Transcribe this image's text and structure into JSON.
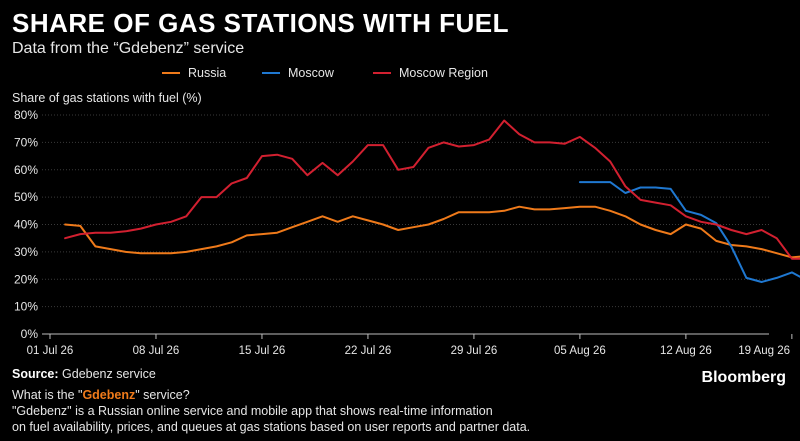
{
  "header": {
    "title": "SHARE OF GAS STATIONS WITH FUEL",
    "subtitle": "Data from the “Gdebenz” service"
  },
  "legend": [
    {
      "label": "Russia",
      "color": "#ef7a1a"
    },
    {
      "label": "Moscow",
      "color": "#1f78d1"
    },
    {
      "label": "Moscow Region",
      "color": "#d22030"
    }
  ],
  "chart_data": {
    "type": "line",
    "title": "SHARE OF GAS STATIONS WITH FUEL",
    "ylabel": "Share of gas stations with fuel (%)",
    "ylim": [
      0,
      80
    ],
    "y_ticks": [
      "0%",
      "10%",
      "20%",
      "30%",
      "40%",
      "50%",
      "60%",
      "70%",
      "80%"
    ],
    "x_ticks": [
      "01 Jul 26",
      "08 Jul 26",
      "15 Jul 26",
      "22 Jul 26",
      "29 Jul 26",
      "05 Aug 26",
      "12 Aug 26",
      "19 Aug 26"
    ],
    "grid": true,
    "legend_position": "top",
    "series": [
      {
        "name": "Russia",
        "color": "#ef7a1a",
        "points": [
          [
            "2026-07-02",
            40
          ],
          [
            "2026-07-03",
            39.5
          ],
          [
            "2026-07-04",
            32
          ],
          [
            "2026-07-05",
            31
          ],
          [
            "2026-07-06",
            30
          ],
          [
            "2026-07-07",
            29.5
          ],
          [
            "2026-07-08",
            29.5
          ],
          [
            "2026-07-09",
            29.5
          ],
          [
            "2026-07-10",
            30
          ],
          [
            "2026-07-11",
            31
          ],
          [
            "2026-07-12",
            32
          ],
          [
            "2026-07-13",
            33.5
          ],
          [
            "2026-07-14",
            36
          ],
          [
            "2026-07-15",
            36.5
          ],
          [
            "2026-07-16",
            37
          ],
          [
            "2026-07-17",
            39
          ],
          [
            "2026-07-18",
            41
          ],
          [
            "2026-07-19",
            43
          ],
          [
            "2026-07-20",
            41
          ],
          [
            "2026-07-21",
            43
          ],
          [
            "2026-07-22",
            41.5
          ],
          [
            "2026-07-23",
            40
          ],
          [
            "2026-07-24",
            38
          ],
          [
            "2026-07-25",
            39
          ],
          [
            "2026-07-26",
            40
          ],
          [
            "2026-07-27",
            42
          ],
          [
            "2026-07-28",
            44.5
          ],
          [
            "2026-07-29",
            44.5
          ],
          [
            "2026-07-30",
            44.5
          ],
          [
            "2026-07-31",
            45
          ],
          [
            "2026-08-01",
            46.5
          ],
          [
            "2026-08-02",
            45.5
          ],
          [
            "2026-08-03",
            45.5
          ],
          [
            "2026-08-04",
            46
          ],
          [
            "2026-08-05",
            46.5
          ],
          [
            "2026-08-06",
            46.5
          ],
          [
            "2026-08-07",
            45
          ],
          [
            "2026-08-08",
            43
          ],
          [
            "2026-08-09",
            40
          ],
          [
            "2026-08-10",
            38
          ],
          [
            "2026-08-11",
            36.5
          ],
          [
            "2026-08-12",
            40
          ],
          [
            "2026-08-13",
            38.5
          ],
          [
            "2026-08-14",
            34
          ],
          [
            "2026-08-15",
            32.5
          ],
          [
            "2026-08-16",
            32
          ],
          [
            "2026-08-17",
            31
          ],
          [
            "2026-08-18",
            29.5
          ],
          [
            "2026-08-19",
            28
          ],
          [
            "2026-08-20",
            28.5
          ],
          [
            "2026-08-21",
            28
          ],
          [
            "2026-08-22",
            27
          ],
          [
            "2026-08-23",
            28
          ]
        ]
      },
      {
        "name": "Moscow",
        "color": "#1f78d1",
        "points": [
          [
            "2026-08-05",
            55.5
          ],
          [
            "2026-08-06",
            55.5
          ],
          [
            "2026-08-07",
            55.5
          ],
          [
            "2026-08-08",
            51.5
          ],
          [
            "2026-08-09",
            53.5
          ],
          [
            "2026-08-10",
            53.5
          ],
          [
            "2026-08-11",
            53
          ],
          [
            "2026-08-12",
            45
          ],
          [
            "2026-08-13",
            43.5
          ],
          [
            "2026-08-14",
            40.5
          ],
          [
            "2026-08-15",
            32
          ],
          [
            "2026-08-16",
            20.5
          ],
          [
            "2026-08-17",
            19
          ],
          [
            "2026-08-18",
            20.5
          ],
          [
            "2026-08-19",
            22.5
          ],
          [
            "2026-08-20",
            19.5
          ],
          [
            "2026-08-21",
            19.5
          ],
          [
            "2026-08-22",
            18.5
          ]
        ]
      },
      {
        "name": "Moscow Region",
        "color": "#d22030",
        "points": [
          [
            "2026-07-02",
            35
          ],
          [
            "2026-07-03",
            36.5
          ],
          [
            "2026-07-04",
            37
          ],
          [
            "2026-07-05",
            37
          ],
          [
            "2026-07-06",
            37.5
          ],
          [
            "2026-07-07",
            38.5
          ],
          [
            "2026-07-08",
            40
          ],
          [
            "2026-07-09",
            41
          ],
          [
            "2026-07-10",
            43
          ],
          [
            "2026-07-11",
            50
          ],
          [
            "2026-07-12",
            50
          ],
          [
            "2026-07-13",
            55
          ],
          [
            "2026-07-14",
            57
          ],
          [
            "2026-07-15",
            65
          ],
          [
            "2026-07-16",
            65.5
          ],
          [
            "2026-07-17",
            64
          ],
          [
            "2026-07-18",
            58
          ],
          [
            "2026-07-19",
            62.5
          ],
          [
            "2026-07-20",
            58
          ],
          [
            "2026-07-21",
            63
          ],
          [
            "2026-07-22",
            69
          ],
          [
            "2026-07-23",
            69
          ],
          [
            "2026-07-24",
            60
          ],
          [
            "2026-07-25",
            61
          ],
          [
            "2026-07-26",
            68
          ],
          [
            "2026-07-27",
            70
          ],
          [
            "2026-07-28",
            68.5
          ],
          [
            "2026-07-29",
            69
          ],
          [
            "2026-07-30",
            71
          ],
          [
            "2026-07-31",
            78
          ],
          [
            "2026-08-01",
            73
          ],
          [
            "2026-08-02",
            70
          ],
          [
            "2026-08-03",
            70
          ],
          [
            "2026-08-04",
            69.5
          ],
          [
            "2026-08-05",
            72
          ],
          [
            "2026-08-06",
            68
          ],
          [
            "2026-08-07",
            63
          ],
          [
            "2026-08-08",
            54
          ],
          [
            "2026-08-09",
            49
          ],
          [
            "2026-08-10",
            48
          ],
          [
            "2026-08-11",
            47
          ],
          [
            "2026-08-12",
            43
          ],
          [
            "2026-08-13",
            41
          ],
          [
            "2026-08-14",
            40
          ],
          [
            "2026-08-15",
            38
          ],
          [
            "2026-08-16",
            36.5
          ],
          [
            "2026-08-17",
            38
          ],
          [
            "2026-08-18",
            35
          ],
          [
            "2026-08-19",
            27.5
          ],
          [
            "2026-08-20",
            27.5
          ],
          [
            "2026-08-21",
            25.5
          ],
          [
            "2026-08-22",
            22.5
          ],
          [
            "2026-08-23",
            22
          ]
        ]
      }
    ]
  },
  "footer": {
    "source_label": "Source:",
    "source_text": " Gdebenz service",
    "question_before": "What is the \"",
    "question_highlight": "Gdebenz",
    "question_after": "\" service?",
    "description_line1": "\"Gdebenz\" is a Russian online service and mobile app that shows real-time information",
    "description_line2": "on fuel availability, prices, and queues at gas stations based on user reports and partner data."
  },
  "brand": "Bloomberg"
}
